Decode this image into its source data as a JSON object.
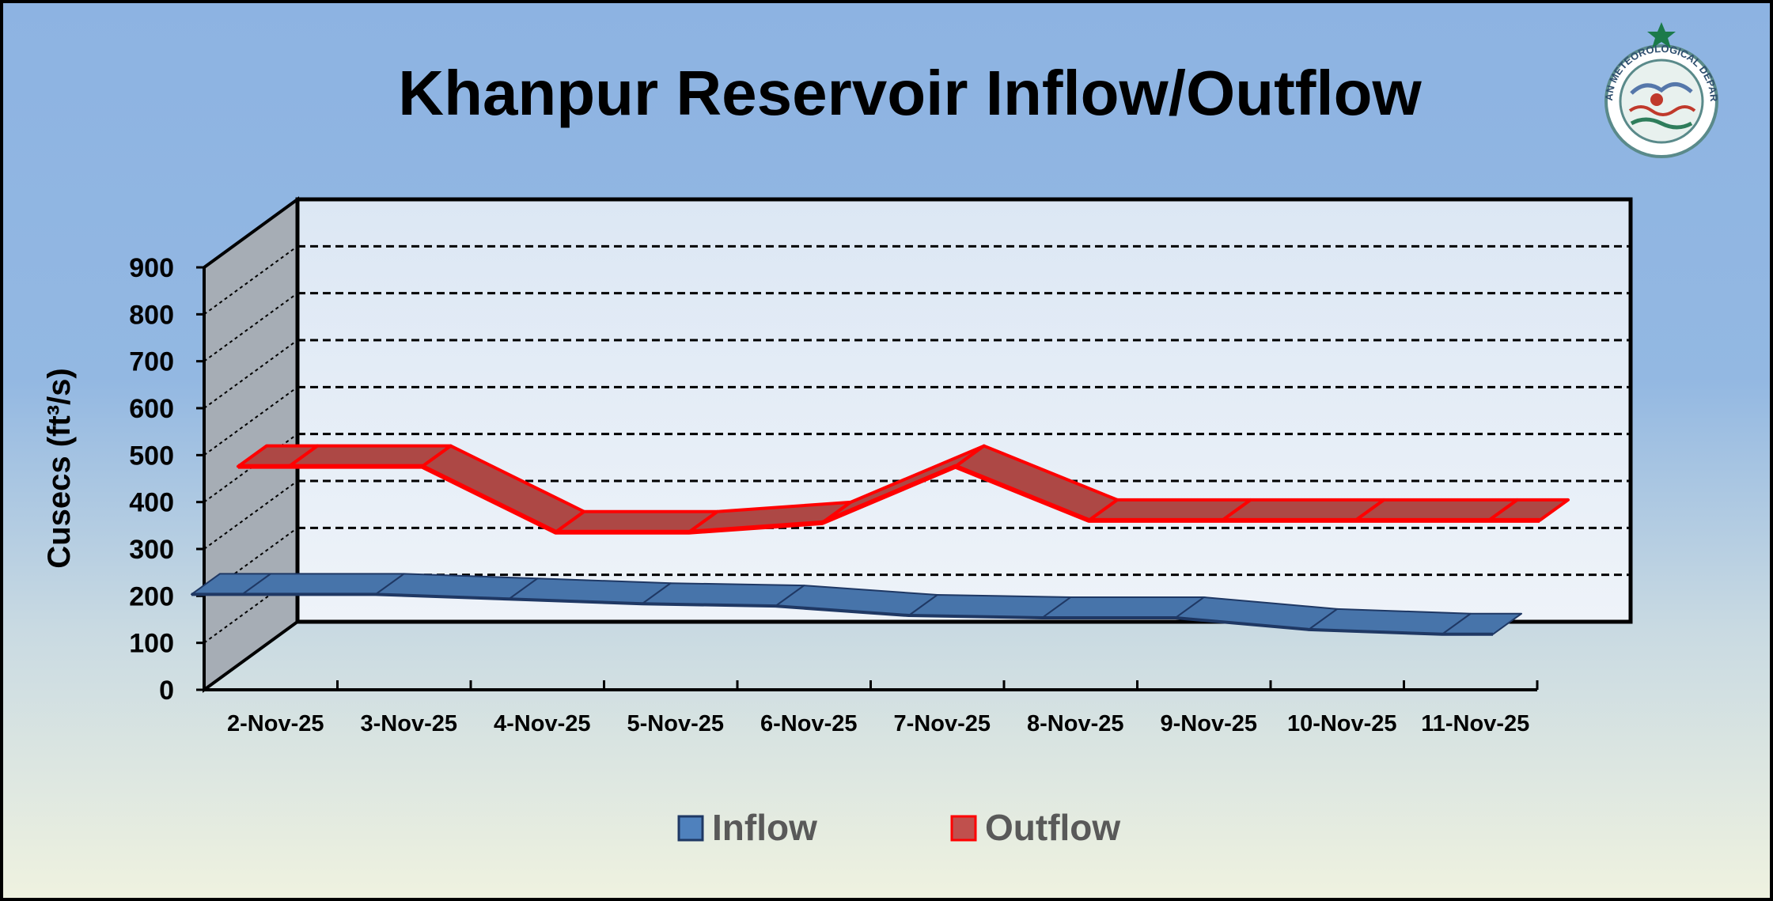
{
  "chart_data": {
    "type": "line",
    "title": "Khanpur Reservoir Inflow/Outflow",
    "ylabel": "Cusecs (ft³/s)",
    "xlabel": "",
    "ylim": [
      0,
      900
    ],
    "yticks": [
      "0",
      "100",
      "200",
      "300",
      "400",
      "500",
      "600",
      "700",
      "800",
      "900"
    ],
    "categories": [
      "2-Nov-25",
      "3-Nov-25",
      "4-Nov-25",
      "5-Nov-25",
      "6-Nov-25",
      "7-Nov-25",
      "8-Nov-25",
      "9-Nov-25",
      "10-Nov-25",
      "11-Nov-25"
    ],
    "series": [
      {
        "name": "Inflow",
        "color": "#4F81BD",
        "values": [
          200,
          200,
          190,
          180,
          175,
          155,
          150,
          150,
          125,
          115
        ]
      },
      {
        "name": "Outflow",
        "color": "#C0504D",
        "edge": "#FF0000",
        "values": [
          400,
          400,
          260,
          260,
          280,
          400,
          285,
          285,
          285,
          285
        ]
      }
    ],
    "grid": true,
    "three_d": true,
    "legend_position": "bottom"
  },
  "logo": {
    "name": "Pakistan Meteorological Department emblem",
    "text": "PAKISTAN METEOROLOGICAL DEPARTMENT"
  }
}
